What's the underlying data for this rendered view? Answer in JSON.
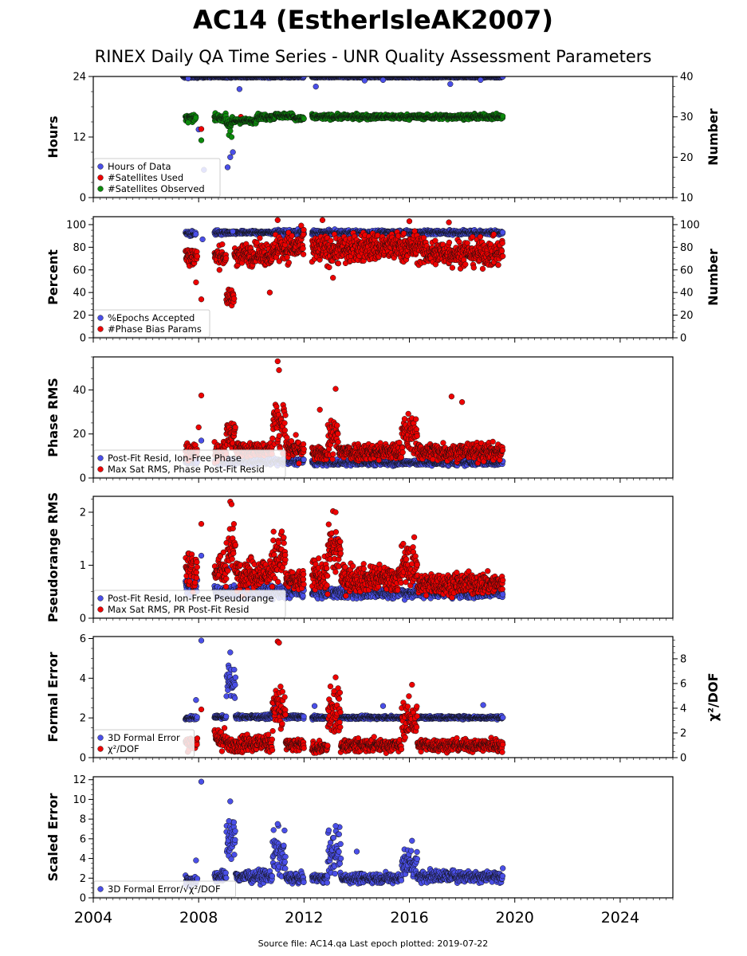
{
  "title": "AC14 (EstherIsleAK2007)",
  "subtitle": "RINEX Daily QA Time Series - UNR Quality Assessment Parameters",
  "footer": "Source file: AC14.qa Last epoch plotted: 2019-07-22",
  "colors": {
    "blue": "#4a4fe8",
    "red": "#ee0000",
    "green": "#0c8a0c",
    "edge": "#111111"
  },
  "chart_data": [
    {
      "type": "scatter",
      "id": "hours",
      "ylabel": "Hours",
      "ylim": [
        0,
        24
      ],
      "yticks": [
        "0",
        "12",
        "24"
      ],
      "right_ylabel": "Number",
      "right_ylim": [
        10,
        40
      ],
      "right_yticks": [
        "10",
        "20",
        "30",
        "40"
      ],
      "xlim": [
        2004,
        2026
      ],
      "legend": "lower-left",
      "series": [
        {
          "name": "Hours of Data",
          "color": "blue",
          "axis": "left",
          "segments": [
            [
              2007.4,
              2008.05,
              23.9,
              0.2
            ],
            [
              2008.05,
              2012.0,
              23.9,
              0.15
            ],
            [
              2012.3,
              2019.55,
              23.9,
              0.15
            ]
          ],
          "outliers": [
            [
              2007.6,
              23.6
            ],
            [
              2008.0,
              13.5
            ],
            [
              2008.2,
              5.5
            ],
            [
              2009.1,
              6.0
            ],
            [
              2009.2,
              8.0
            ],
            [
              2009.3,
              9.0
            ],
            [
              2009.55,
              21.5
            ],
            [
              2012.45,
              22.0
            ],
            [
              2014.3,
              23.2
            ],
            [
              2015.0,
              23.3
            ],
            [
              2017.55,
              22.5
            ],
            [
              2018.7,
              23.3
            ]
          ]
        },
        {
          "name": "#Satellites Used",
          "color": "red",
          "axis": "right",
          "segments": [],
          "outliers": [
            [
              2008.1,
              27.0
            ],
            [
              2008.6,
              30.0
            ],
            [
              2009.6,
              30.0
            ]
          ]
        },
        {
          "name": "#Satellites Observed",
          "color": "green",
          "axis": "right",
          "segments": [
            [
              2007.5,
              2007.9,
              29.7,
              0.8
            ],
            [
              2008.6,
              2009.05,
              29.8,
              0.8
            ],
            [
              2009.05,
              2009.35,
              28.5,
              1.2
            ],
            [
              2009.35,
              2010.2,
              29.0,
              0.6
            ],
            [
              2010.2,
              2010.9,
              30.0,
              0.7
            ],
            [
              2010.9,
              2011.6,
              30.3,
              0.6
            ],
            [
              2011.6,
              2012.0,
              29.5,
              0.7
            ],
            [
              2012.3,
              2019.55,
              30.0,
              0.6
            ]
          ],
          "outliers": [
            [
              2007.6,
              28.6
            ],
            [
              2008.1,
              24.2
            ],
            [
              2009.15,
              25.5
            ],
            [
              2009.2,
              26.5
            ],
            [
              2009.25,
              25.0
            ]
          ]
        }
      ]
    },
    {
      "type": "scatter",
      "id": "percent",
      "ylabel": "Percent",
      "ylim": [
        0,
        107
      ],
      "yticks": [
        "0",
        "20",
        "40",
        "60",
        "80",
        "100"
      ],
      "right_ylabel": "Number",
      "right_ylim": [
        0,
        107
      ],
      "right_yticks": [
        "0",
        "20",
        "40",
        "60",
        "80",
        "100"
      ],
      "xlim": [
        2004,
        2026
      ],
      "legend": "lower-left",
      "series": [
        {
          "name": "%Epochs Accepted",
          "color": "blue",
          "axis": "left",
          "segments": [
            [
              2007.5,
              2007.9,
              92,
              2.5
            ],
            [
              2008.6,
              2009.2,
              93,
              2.0
            ],
            [
              2009.2,
              2010.9,
              93,
              1.5
            ],
            [
              2010.9,
              2012.0,
              93,
              2.5
            ],
            [
              2012.3,
              2019.55,
              93,
              2.0
            ]
          ],
          "outliers": [
            [
              2008.15,
              87
            ],
            [
              2009.3,
              94
            ],
            [
              2011.9,
              82
            ]
          ]
        },
        {
          "name": "#Phase Bias Params",
          "color": "red",
          "axis": "right",
          "segments": [
            [
              2007.5,
              2007.95,
              72,
              9
            ],
            [
              2008.6,
              2009.05,
              72,
              9
            ],
            [
              2009.05,
              2009.35,
              35,
              7
            ],
            [
              2009.35,
              2010.9,
              74,
              10
            ],
            [
              2010.9,
              2012.0,
              80,
              13
            ],
            [
              2012.3,
              2014.0,
              78,
              13
            ],
            [
              2014.0,
              2016.5,
              80,
              13
            ],
            [
              2016.5,
              2019.55,
              75,
              12
            ]
          ],
          "outliers": [
            [
              2007.9,
              49
            ],
            [
              2008.1,
              34
            ],
            [
              2010.7,
              40
            ],
            [
              2013.1,
              53
            ],
            [
              2011.0,
              104
            ],
            [
              2012.7,
              104
            ],
            [
              2016.0,
              103
            ],
            [
              2017.5,
              102
            ]
          ]
        }
      ]
    },
    {
      "type": "scatter",
      "id": "phase",
      "ylabel": "Phase RMS",
      "ylim": [
        0,
        55
      ],
      "yticks": [
        "0",
        "20",
        "40"
      ],
      "xlim": [
        2004,
        2026
      ],
      "legend": "lower-left",
      "series": [
        {
          "name": "Post-Fit Resid, Ion-Free Phase",
          "color": "blue",
          "axis": "left",
          "segments": [
            [
              2007.5,
              2007.95,
              7.5,
              1.5
            ],
            [
              2008.6,
              2012.0,
              7.5,
              1.5
            ],
            [
              2012.3,
              2019.55,
              7.0,
              1.3
            ]
          ],
          "outliers": [
            [
              2008.1,
              17.0
            ],
            [
              2009.1,
              9.0
            ]
          ]
        },
        {
          "name": "Max Sat RMS, Phase Post-Fit Resid",
          "color": "red",
          "axis": "left",
          "segments": [
            [
              2007.5,
              2007.95,
              12,
              4
            ],
            [
              2008.6,
              2009.05,
              12,
              4
            ],
            [
              2009.05,
              2009.4,
              20,
              6
            ],
            [
              2009.4,
              2010.8,
              13,
              3
            ],
            [
              2010.8,
              2011.3,
              25,
              10
            ],
            [
              2011.3,
              2012.0,
              13,
              5
            ],
            [
              2012.3,
              2012.9,
              11,
              3
            ],
            [
              2012.9,
              2013.3,
              18,
              9
            ],
            [
              2013.3,
              2015.7,
              12,
              4
            ],
            [
              2015.7,
              2016.3,
              20,
              9
            ],
            [
              2016.3,
              2019.55,
              12,
              4
            ]
          ],
          "outliers": [
            [
              2008.1,
              37.5
            ],
            [
              2011.0,
              53
            ],
            [
              2011.05,
              49
            ],
            [
              2013.2,
              40.5
            ],
            [
              2017.6,
              37
            ],
            [
              2018.0,
              34.5
            ],
            [
              2012.6,
              31
            ],
            [
              2008.0,
              23
            ]
          ]
        }
      ]
    },
    {
      "type": "scatter",
      "id": "pseudorange",
      "ylabel": "Pseudorange RMS",
      "ylim": [
        0,
        2.3
      ],
      "yticks": [
        "0",
        "1",
        "2"
      ],
      "xlim": [
        2004,
        2026
      ],
      "legend": "lower-left",
      "series": [
        {
          "name": "Post-Fit Resid, Ion-Free Pseudorange",
          "color": "blue",
          "axis": "left",
          "segments": [
            [
              2007.5,
              2007.95,
              0.65,
              0.25
            ],
            [
              2008.6,
              2012.0,
              0.5,
              0.12
            ],
            [
              2012.3,
              2019.55,
              0.48,
              0.1
            ]
          ],
          "outliers": [
            [
              2008.1,
              1.18
            ],
            [
              2009.2,
              0.95
            ],
            [
              2013.2,
              1.5
            ]
          ]
        },
        {
          "name": "Max Sat RMS, PR Post-Fit Resid",
          "color": "red",
          "axis": "left",
          "segments": [
            [
              2007.5,
              2007.95,
              0.9,
              0.35
            ],
            [
              2008.6,
              2009.05,
              0.9,
              0.35
            ],
            [
              2009.05,
              2009.4,
              1.3,
              0.45
            ],
            [
              2009.4,
              2010.8,
              0.85,
              0.3
            ],
            [
              2010.8,
              2011.3,
              1.2,
              0.45
            ],
            [
              2011.3,
              2012.0,
              0.7,
              0.2
            ],
            [
              2012.3,
              2012.9,
              0.8,
              0.3
            ],
            [
              2012.9,
              2013.4,
              1.3,
              0.5
            ],
            [
              2013.4,
              2015.7,
              0.75,
              0.25
            ],
            [
              2015.7,
              2016.3,
              1.0,
              0.4
            ],
            [
              2016.3,
              2019.55,
              0.65,
              0.2
            ]
          ],
          "outliers": [
            [
              2008.1,
              1.78
            ],
            [
              2009.2,
              2.2
            ],
            [
              2009.25,
              2.15
            ],
            [
              2013.1,
              2.02
            ],
            [
              2013.2,
              2.0
            ]
          ]
        }
      ]
    },
    {
      "type": "scatter",
      "id": "formal",
      "ylabel": "Formal Error",
      "ylim": [
        0,
        6.1
      ],
      "yticks": [
        "0",
        "2",
        "4",
        "6"
      ],
      "right_ylabel": "χ²/DOF",
      "right_ylim": [
        0,
        9.8
      ],
      "right_yticks": [
        "0",
        "2",
        "4",
        "6",
        "8"
      ],
      "xlim": [
        2004,
        2026
      ],
      "legend": "lower-left",
      "series": [
        {
          "name": "3D Formal Error",
          "color": "blue",
          "axis": "left",
          "segments": [
            [
              2007.5,
              2007.95,
              2.0,
              0.1
            ],
            [
              2008.6,
              2009.05,
              2.05,
              0.08
            ],
            [
              2009.05,
              2009.4,
              3.8,
              0.9
            ],
            [
              2009.4,
              2010.8,
              2.05,
              0.1
            ],
            [
              2010.8,
              2011.3,
              2.2,
              0.3
            ],
            [
              2011.3,
              2012.0,
              2.05,
              0.1
            ],
            [
              2012.3,
              2019.55,
              2.02,
              0.08
            ]
          ],
          "outliers": [
            [
              2008.1,
              5.9
            ],
            [
              2007.9,
              2.9
            ],
            [
              2009.2,
              5.3
            ],
            [
              2012.4,
              2.6
            ],
            [
              2013.3,
              3.0
            ],
            [
              2015.0,
              2.6
            ],
            [
              2018.8,
              2.65
            ]
          ]
        },
        {
          "name": "χ²/DOF",
          "color": "red",
          "axis": "right",
          "segments": [
            [
              2007.5,
              2007.95,
              1.2,
              0.6
            ],
            [
              2008.6,
              2009.05,
              1.5,
              0.9
            ],
            [
              2009.05,
              2009.4,
              1.0,
              0.6
            ],
            [
              2009.4,
              2010.8,
              1.2,
              0.7
            ],
            [
              2010.8,
              2011.3,
              4.0,
              2.2
            ],
            [
              2011.3,
              2012.0,
              1.0,
              0.5
            ],
            [
              2012.3,
              2012.9,
              0.8,
              0.4
            ],
            [
              2012.9,
              2013.4,
              3.5,
              2.0
            ],
            [
              2013.4,
              2015.7,
              1.0,
              0.5
            ],
            [
              2015.7,
              2016.3,
              3.0,
              1.5
            ],
            [
              2016.3,
              2019.55,
              1.0,
              0.5
            ]
          ],
          "outliers": [
            [
              2008.1,
              3.9
            ],
            [
              2011.0,
              9.4
            ],
            [
              2011.05,
              9.3
            ],
            [
              2013.2,
              6.5
            ],
            [
              2016.1,
              5.9
            ]
          ]
        }
      ]
    },
    {
      "type": "scatter",
      "id": "scaled",
      "ylabel": "Scaled Error",
      "ylim": [
        0,
        12.3
      ],
      "yticks": [
        "0",
        "2",
        "4",
        "6",
        "8",
        "10",
        "12"
      ],
      "xlim": [
        2004,
        2026
      ],
      "xticks": [
        "2004",
        "2008",
        "2012",
        "2016",
        "2020",
        "2024"
      ],
      "legend": "lower-left",
      "series": [
        {
          "name": "3D Formal Error/√χ²/DOF",
          "color": "blue",
          "axis": "left",
          "segments": [
            [
              2007.5,
              2007.95,
              1.8,
              0.5
            ],
            [
              2008.6,
              2009.05,
              2.2,
              0.6
            ],
            [
              2009.05,
              2009.4,
              6.0,
              1.8
            ],
            [
              2009.4,
              2010.8,
              2.2,
              0.6
            ],
            [
              2010.8,
              2011.3,
              4.5,
              2.2
            ],
            [
              2011.3,
              2012.0,
              2.0,
              0.5
            ],
            [
              2012.3,
              2012.9,
              2.0,
              0.4
            ],
            [
              2012.9,
              2013.4,
              4.5,
              2.2
            ],
            [
              2013.4,
              2015.7,
              2.0,
              0.5
            ],
            [
              2015.7,
              2016.3,
              3.5,
              1.5
            ],
            [
              2016.3,
              2019.55,
              2.2,
              0.6
            ]
          ],
          "outliers": [
            [
              2008.1,
              11.8
            ],
            [
              2009.2,
              9.8
            ],
            [
              2009.15,
              7.8
            ],
            [
              2011.0,
              7.5
            ],
            [
              2013.2,
              7.3
            ],
            [
              2014.0,
              4.7
            ],
            [
              2016.1,
              5.8
            ],
            [
              2007.9,
              3.8
            ]
          ]
        }
      ]
    }
  ]
}
